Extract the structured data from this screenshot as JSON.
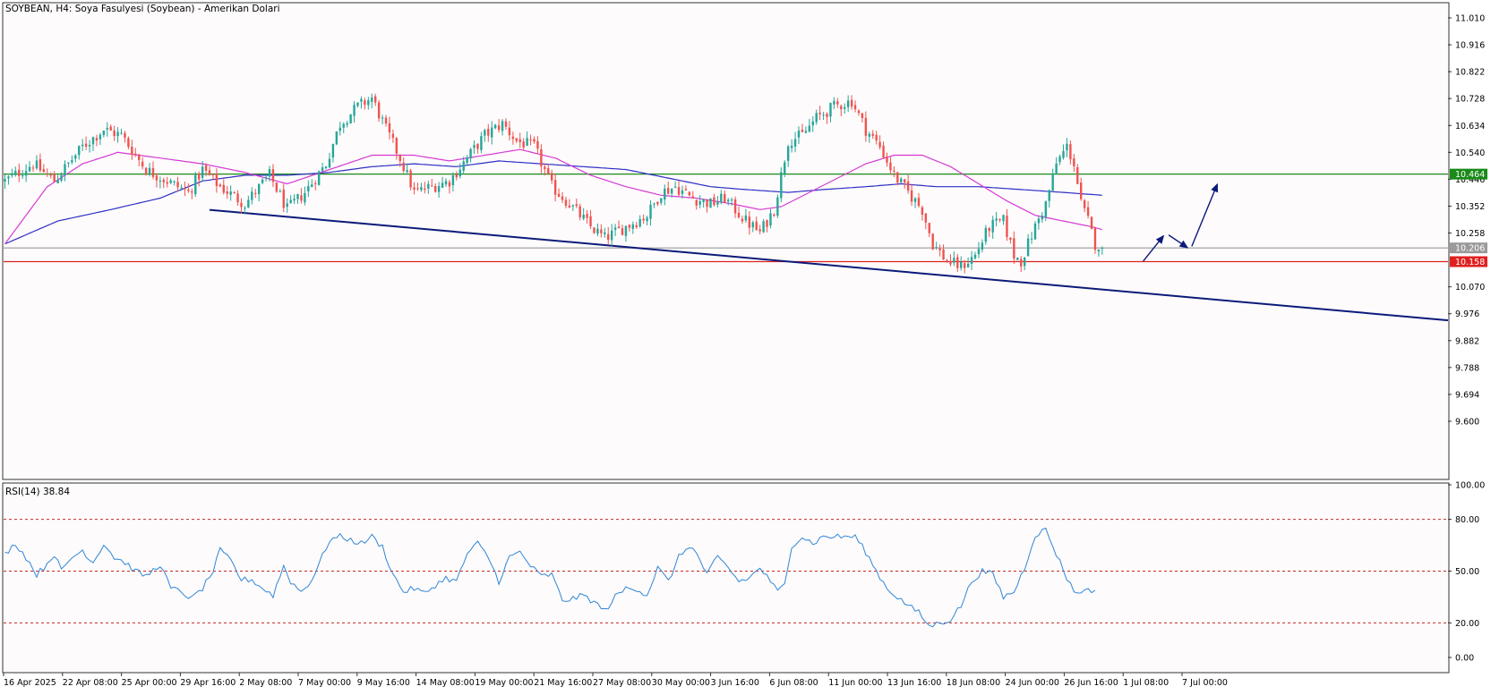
{
  "header": {
    "title": "SOYBEAN, H4:  Soya Fasulyesi (Soybean) - Amerikan Dolari"
  },
  "colors": {
    "background": "#fdfbfb",
    "bull_candle": "#26a69a",
    "bear_candle": "#ef5350",
    "ma_fast": "#d63ad6",
    "ma_slow": "#2e2ec7",
    "trendline": "#0b1a7a",
    "resistance": "#1a8a1a",
    "support": "#e02020",
    "current_price_line": "#9a9a9a",
    "rsi_line": "#2f86d8",
    "rsi_levels": "#c62828",
    "projection_arrows": "#0b1a7a"
  },
  "chart_data": [
    {
      "type": "candlestick",
      "symbol": "SOYBEAN",
      "timeframe": "H4",
      "title": "SOYBEAN, H4:  Soya Fasulyesi (Soybean) - Amerikan Dolari",
      "ylim": [
        9.55,
        11.05
      ],
      "y_ticks": [
        "11.010",
        "10.916",
        "10.822",
        "10.728",
        "10.634",
        "10.540",
        "10.446",
        "10.352",
        "10.258",
        "10.070",
        "9.976",
        "9.882",
        "9.788",
        "9.694",
        "9.600"
      ],
      "x_tick_labels": [
        "16 Apr 2025",
        "22 Apr 08:00",
        "25 Apr 00:00",
        "29 Apr 16:00",
        "2 May 08:00",
        "7 May 00:00",
        "9 May 16:00",
        "14 May 08:00",
        "19 May 00:00",
        "21 May 16:00",
        "27 May 08:00",
        "30 May 00:00",
        "3 Jun 16:00",
        "6 Jun 08:00",
        "11 Jun 00:00",
        "13 Jun 16:00",
        "18 Jun 08:00",
        "24 Jun 00:00",
        "26 Jun 16:00",
        "1 Jul 08:00",
        "7 Jul 00:00"
      ],
      "close_anchors": [
        [
          0,
          10.44
        ],
        [
          8,
          10.5
        ],
        [
          14,
          10.44
        ],
        [
          22,
          10.56
        ],
        [
          28,
          10.62
        ],
        [
          33,
          10.6
        ],
        [
          40,
          10.48
        ],
        [
          46,
          10.44
        ],
        [
          52,
          10.4
        ],
        [
          56,
          10.48
        ],
        [
          61,
          10.42
        ],
        [
          68,
          10.36
        ],
        [
          75,
          10.46
        ],
        [
          80,
          10.34
        ],
        [
          85,
          10.4
        ],
        [
          91,
          10.5
        ],
        [
          95,
          10.64
        ],
        [
          100,
          10.7
        ],
        [
          104,
          10.73
        ],
        [
          108,
          10.62
        ],
        [
          112,
          10.52
        ],
        [
          116,
          10.4
        ],
        [
          121,
          10.42
        ],
        [
          126,
          10.44
        ],
        [
          131,
          10.52
        ],
        [
          136,
          10.6
        ],
        [
          141,
          10.64
        ],
        [
          145,
          10.58
        ],
        [
          150,
          10.56
        ],
        [
          155,
          10.42
        ],
        [
          160,
          10.36
        ],
        [
          166,
          10.28
        ],
        [
          170,
          10.24
        ],
        [
          176,
          10.28
        ],
        [
          182,
          10.32
        ],
        [
          186,
          10.4
        ],
        [
          190,
          10.42
        ],
        [
          195,
          10.38
        ],
        [
          200,
          10.36
        ],
        [
          204,
          10.38
        ],
        [
          210,
          10.3
        ],
        [
          214,
          10.26
        ],
        [
          218,
          10.34
        ],
        [
          222,
          10.58
        ],
        [
          226,
          10.6
        ],
        [
          230,
          10.66
        ],
        [
          235,
          10.7
        ],
        [
          240,
          10.72
        ],
        [
          244,
          10.62
        ],
        [
          248,
          10.56
        ],
        [
          252,
          10.46
        ],
        [
          256,
          10.4
        ],
        [
          260,
          10.34
        ],
        [
          263,
          10.22
        ],
        [
          267,
          10.16
        ],
        [
          271,
          10.14
        ],
        [
          275,
          10.18
        ],
        [
          279,
          10.28
        ],
        [
          283,
          10.3
        ],
        [
          286,
          10.18
        ],
        [
          288,
          10.16
        ],
        [
          292,
          10.28
        ],
        [
          295,
          10.36
        ],
        [
          298,
          10.5
        ],
        [
          301,
          10.56
        ],
        [
          303,
          10.5
        ],
        [
          305,
          10.36
        ],
        [
          307,
          10.3
        ],
        [
          309,
          10.22
        ],
        [
          311,
          10.21
        ]
      ],
      "last_close": 10.206,
      "ma_fast_anchors": [
        [
          0,
          10.22
        ],
        [
          12,
          10.42
        ],
        [
          22,
          10.5
        ],
        [
          32,
          10.54
        ],
        [
          44,
          10.52
        ],
        [
          56,
          10.5
        ],
        [
          68,
          10.47
        ],
        [
          80,
          10.43
        ],
        [
          92,
          10.48
        ],
        [
          104,
          10.53
        ],
        [
          116,
          10.53
        ],
        [
          126,
          10.51
        ],
        [
          136,
          10.53
        ],
        [
          146,
          10.55
        ],
        [
          156,
          10.52
        ],
        [
          166,
          10.46
        ],
        [
          176,
          10.42
        ],
        [
          186,
          10.39
        ],
        [
          196,
          10.38
        ],
        [
          206,
          10.36
        ],
        [
          214,
          10.34
        ],
        [
          220,
          10.35
        ],
        [
          228,
          10.4
        ],
        [
          236,
          10.45
        ],
        [
          244,
          10.5
        ],
        [
          252,
          10.53
        ],
        [
          260,
          10.53
        ],
        [
          268,
          10.49
        ],
        [
          276,
          10.43
        ],
        [
          284,
          10.37
        ],
        [
          292,
          10.32
        ],
        [
          300,
          10.3
        ],
        [
          308,
          10.28
        ],
        [
          311,
          10.27
        ]
      ],
      "ma_slow_anchors": [
        [
          0,
          10.22
        ],
        [
          15,
          10.3
        ],
        [
          30,
          10.34
        ],
        [
          44,
          10.38
        ],
        [
          56,
          10.44
        ],
        [
          68,
          10.46
        ],
        [
          80,
          10.46
        ],
        [
          92,
          10.47
        ],
        [
          104,
          10.49
        ],
        [
          116,
          10.5
        ],
        [
          128,
          10.49
        ],
        [
          140,
          10.51
        ],
        [
          152,
          10.5
        ],
        [
          164,
          10.49
        ],
        [
          176,
          10.48
        ],
        [
          188,
          10.45
        ],
        [
          200,
          10.42
        ],
        [
          210,
          10.41
        ],
        [
          222,
          10.4
        ],
        [
          232,
          10.41
        ],
        [
          244,
          10.42
        ],
        [
          254,
          10.43
        ],
        [
          264,
          10.42
        ],
        [
          276,
          10.42
        ],
        [
          288,
          10.41
        ],
        [
          300,
          10.4
        ],
        [
          311,
          10.39
        ]
      ],
      "bar_count": 312,
      "trendline": {
        "from_bar": 58,
        "from_price": 10.339,
        "to_bar": 388,
        "to_price": 9.976
      },
      "horizontal_levels": [
        {
          "price": 10.464,
          "label": "10.464",
          "role": "resistance"
        },
        {
          "price": 10.206,
          "label": "10.206",
          "role": "current"
        },
        {
          "price": 10.158,
          "label": "10.158",
          "role": "support"
        }
      ],
      "projection_path": [
        [
          322,
          10.15
        ],
        [
          329,
          10.258
        ],
        [
          336,
          10.2
        ],
        [
          344,
          10.44
        ]
      ]
    },
    {
      "type": "line",
      "title": "RSI(14) 38.84",
      "ylim": [
        0,
        100
      ],
      "levels": [
        80,
        50,
        20
      ],
      "y_ticks": [
        "100.00",
        "80.00",
        "50.00",
        "20.00",
        "0.00"
      ],
      "last_value": 38.84,
      "anchors": [
        [
          0,
          60
        ],
        [
          3,
          66
        ],
        [
          6,
          58
        ],
        [
          9,
          48
        ],
        [
          11,
          52
        ],
        [
          14,
          60
        ],
        [
          16,
          50
        ],
        [
          19,
          58
        ],
        [
          22,
          62
        ],
        [
          25,
          55
        ],
        [
          28,
          66
        ],
        [
          31,
          58
        ],
        [
          34,
          55
        ],
        [
          37,
          50
        ],
        [
          40,
          47
        ],
        [
          44,
          54
        ],
        [
          47,
          40
        ],
        [
          50,
          38
        ],
        [
          53,
          34
        ],
        [
          56,
          40
        ],
        [
          59,
          50
        ],
        [
          61,
          62
        ],
        [
          64,
          56
        ],
        [
          67,
          45
        ],
        [
          70,
          45
        ],
        [
          73,
          40
        ],
        [
          76,
          36
        ],
        [
          79,
          53
        ],
        [
          81,
          44
        ],
        [
          84,
          38
        ],
        [
          87,
          45
        ],
        [
          89,
          54
        ],
        [
          92,
          68
        ],
        [
          95,
          70
        ],
        [
          98,
          68
        ],
        [
          101,
          66
        ],
        [
          104,
          70
        ],
        [
          107,
          64
        ],
        [
          110,
          48
        ],
        [
          113,
          38
        ],
        [
          116,
          40
        ],
        [
          119,
          37
        ],
        [
          122,
          42
        ],
        [
          125,
          46
        ],
        [
          128,
          44
        ],
        [
          131,
          60
        ],
        [
          134,
          66
        ],
        [
          137,
          58
        ],
        [
          140,
          44
        ],
        [
          143,
          58
        ],
        [
          146,
          61
        ],
        [
          149,
          53
        ],
        [
          152,
          47
        ],
        [
          155,
          48
        ],
        [
          158,
          33
        ],
        [
          161,
          34
        ],
        [
          164,
          36
        ],
        [
          167,
          32
        ],
        [
          170,
          27
        ],
        [
          173,
          35
        ],
        [
          176,
          40
        ],
        [
          179,
          40
        ],
        [
          182,
          36
        ],
        [
          185,
          52
        ],
        [
          188,
          44
        ],
        [
          191,
          58
        ],
        [
          194,
          65
        ],
        [
          196,
          60
        ],
        [
          199,
          48
        ],
        [
          202,
          58
        ],
        [
          205,
          52
        ],
        [
          208,
          44
        ],
        [
          211,
          46
        ],
        [
          214,
          52
        ],
        [
          217,
          44
        ],
        [
          219,
          38
        ],
        [
          221,
          42
        ],
        [
          223,
          65
        ],
        [
          226,
          70
        ],
        [
          229,
          66
        ],
        [
          232,
          70
        ],
        [
          235,
          70
        ],
        [
          238,
          70
        ],
        [
          241,
          70
        ],
        [
          244,
          61
        ],
        [
          247,
          50
        ],
        [
          250,
          40
        ],
        [
          253,
          35
        ],
        [
          256,
          30
        ],
        [
          259,
          26
        ],
        [
          262,
          18
        ],
        [
          265,
          20
        ],
        [
          268,
          22
        ],
        [
          271,
          30
        ],
        [
          274,
          44
        ],
        [
          277,
          50
        ],
        [
          280,
          48
        ],
        [
          283,
          35
        ],
        [
          286,
          38
        ],
        [
          289,
          52
        ],
        [
          292,
          71
        ],
        [
          295,
          74
        ],
        [
          298,
          60
        ],
        [
          301,
          46
        ],
        [
          304,
          36
        ],
        [
          306,
          40
        ],
        [
          308,
          38
        ],
        [
          309,
          39
        ]
      ]
    }
  ]
}
